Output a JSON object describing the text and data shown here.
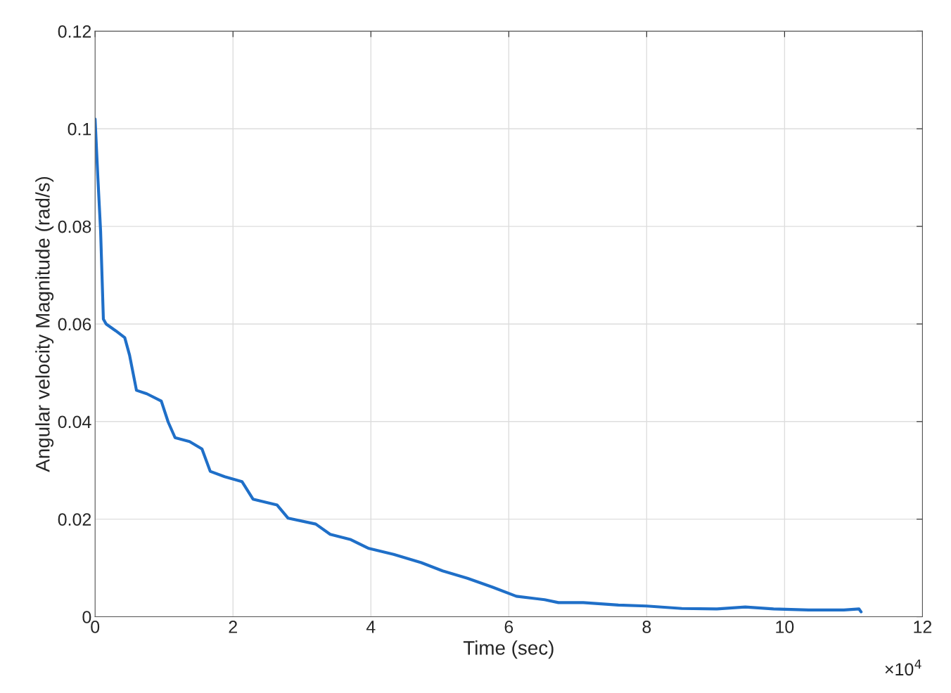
{
  "chart_data": {
    "type": "line",
    "xlabel": "Time (sec)",
    "ylabel": "Angular velocity Magnitude (rad/s)",
    "xlim": [
      0,
      12
    ],
    "ylim": [
      0,
      0.12
    ],
    "xticks": [
      0,
      2,
      4,
      6,
      8,
      10,
      12
    ],
    "yticks": [
      0,
      0.02,
      0.04,
      0.06,
      0.08,
      0.1,
      0.12
    ],
    "grid": true,
    "annotations": [
      "×10$^{4}$"
    ],
    "series": [
      {
        "color": "#1f6fc8",
        "x": [
          0,
          0.04,
          0.08,
          0.12,
          0.16,
          0.3,
          0.43,
          0.5,
          0.6,
          0.75,
          0.96,
          1.06,
          1.16,
          1.37,
          1.55,
          1.67,
          1.88,
          2.13,
          2.29,
          2.64,
          2.8,
          3.2,
          3.41,
          3.71,
          3.97,
          4.33,
          4.73,
          5.04,
          5.4,
          5.76,
          6.11,
          6.52,
          6.72,
          7.08,
          7.59,
          8.0,
          8.51,
          9.02,
          9.43,
          9.84,
          10.35,
          10.86,
          11.08,
          11.11
        ],
        "values": [
          0.102,
          0.09,
          0.079,
          0.061,
          0.06,
          0.0586,
          0.0572,
          0.0536,
          0.0464,
          0.0457,
          0.0442,
          0.0399,
          0.0367,
          0.0359,
          0.0344,
          0.0298,
          0.0287,
          0.0277,
          0.0241,
          0.0229,
          0.0202,
          0.019,
          0.0169,
          0.0158,
          0.014,
          0.0128,
          0.0111,
          0.0094,
          0.0079,
          0.0061,
          0.0042,
          0.0035,
          0.0029,
          0.0029,
          0.0024,
          0.0022,
          0.0017,
          0.0016,
          0.002,
          0.0016,
          0.0014,
          0.0014,
          0.0016,
          0.001
        ]
      }
    ]
  }
}
